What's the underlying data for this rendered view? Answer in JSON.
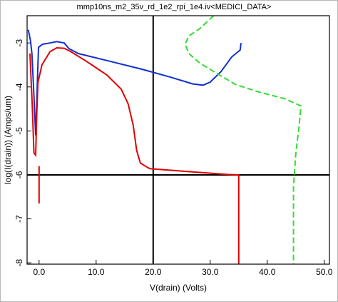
{
  "chart_data": {
    "type": "line",
    "title": "mmp10ns_m2_35v_rd_1e2_rpi_1e4.iv<MEDICI_DATA>",
    "x_label": "V(drain) (Volts)",
    "y_label": "log(I(drain)) (Amps/um)",
    "xlim": [
      -2.1,
      50.9
    ],
    "ylim": [
      -8.03,
      -2.38
    ],
    "xticks": [
      {
        "value": 0,
        "label": "0.0"
      },
      {
        "value": 10,
        "label": "10.0"
      },
      {
        "value": 20,
        "label": "20.0"
      },
      {
        "value": 30,
        "label": "30.0"
      },
      {
        "value": 40,
        "label": "40.0"
      },
      {
        "value": 50,
        "label": "50.0"
      }
    ],
    "yticks": [
      -3,
      -4,
      -5,
      -6,
      -7,
      -8
    ],
    "crosshair": {
      "x": 20,
      "y": -6
    },
    "series": [
      {
        "color": "#1030d0",
        "dash": false,
        "x": [
          -1.9,
          -1.5,
          -1.25,
          -0.9,
          -0.6,
          -0.4,
          -0.1,
          0.6,
          1.9,
          3.1,
          4.4,
          5.25,
          6.9,
          11.9,
          18.1,
          23.1,
          26.9,
          28.75,
          30.0,
          31.9,
          33.75,
          35.25,
          35.4
        ],
        "values": [
          -2.7,
          -2.95,
          -3.25,
          -4.2,
          -5.1,
          -4.3,
          -3.1,
          -3.03,
          -3.0,
          -2.97,
          -3.0,
          -3.13,
          -3.24,
          -3.4,
          -3.6,
          -3.78,
          -3.93,
          -3.96,
          -3.89,
          -3.65,
          -3.32,
          -3.16,
          -3.0
        ]
      },
      {
        "color": "#e00000",
        "dash": false,
        "x": [
          -1.6,
          -1.2,
          -0.9,
          -0.6,
          -0.4,
          -0.2,
          0.5,
          1.9,
          3.1,
          4.4,
          5.6,
          8.1,
          11.9,
          14.4,
          15.6,
          16.5,
          17.1,
          17.75,
          19.4,
          25.6,
          33.1,
          35.0,
          35.0,
          0,
          0,
          0
        ],
        "values": [
          -3.24,
          -4.4,
          -5.5,
          -5.55,
          -4.6,
          -3.9,
          -3.5,
          -3.2,
          -3.11,
          -3.12,
          -3.2,
          -3.4,
          -3.73,
          -4.05,
          -4.38,
          -4.87,
          -5.44,
          -5.73,
          -5.86,
          -5.92,
          -5.99,
          -6.0,
          -8.03,
          null,
          -5.8,
          -6.65
        ]
      },
      {
        "color": "#33dd33",
        "dash": true,
        "x": [
          30.6,
          28.1,
          26.25,
          25.6,
          26.25,
          28.1,
          30.6,
          34.4,
          38.1,
          43.1,
          45.9,
          45.6,
          45.0,
          44.6,
          44.6
        ],
        "values": [
          -2.38,
          -2.68,
          -2.84,
          -3.03,
          -3.24,
          -3.45,
          -3.65,
          -3.94,
          -4.1,
          -4.27,
          -4.43,
          -4.87,
          -5.52,
          -6.25,
          -8.03
        ]
      }
    ]
  }
}
